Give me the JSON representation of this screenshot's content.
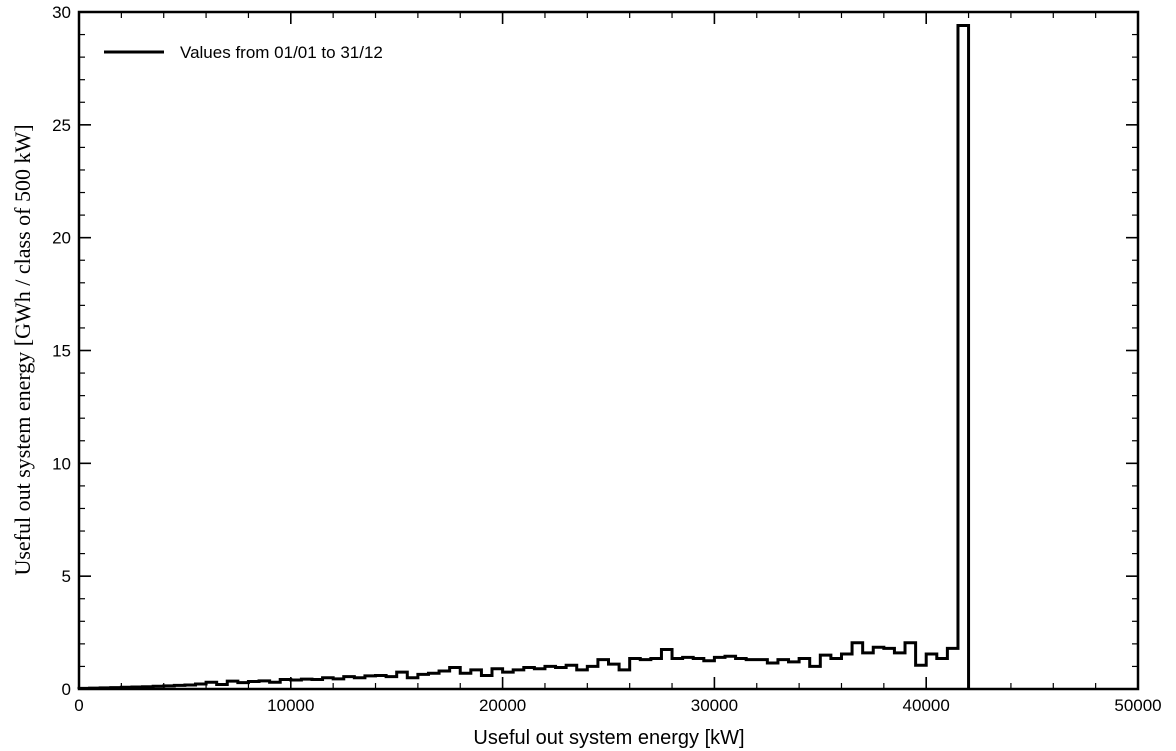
{
  "chart_data": {
    "type": "line",
    "style": "step-histogram",
    "title": "",
    "xlabel": "Useful out system energy [kW]",
    "ylabel": "Useful out system energy [GWh / class of 500 kW]",
    "xlim": [
      0,
      50000
    ],
    "ylim": [
      0,
      30
    ],
    "x_ticks": [
      "0",
      "10000",
      "20000",
      "30000",
      "40000",
      "50000"
    ],
    "y_ticks": [
      "0",
      "5",
      "10",
      "15",
      "20",
      "25",
      "30"
    ],
    "grid": false,
    "legend_position": "top-left",
    "bin_width": 500,
    "series": [
      {
        "name": "Values from 01/01 to 31/12",
        "color": "#000000",
        "bin_start": [
          0,
          500,
          1000,
          1500,
          2000,
          2500,
          3000,
          3500,
          4000,
          4500,
          5000,
          5500,
          6000,
          6500,
          7000,
          7500,
          8000,
          8500,
          9000,
          9500,
          10000,
          10500,
          11000,
          11500,
          12000,
          12500,
          13000,
          13500,
          14000,
          14500,
          15000,
          15500,
          16000,
          16500,
          17000,
          17500,
          18000,
          18500,
          19000,
          19500,
          20000,
          20500,
          21000,
          21500,
          22000,
          22500,
          23000,
          23500,
          24000,
          24500,
          25000,
          25500,
          26000,
          26500,
          27000,
          27500,
          28000,
          28500,
          29000,
          29500,
          30000,
          30500,
          31000,
          31500,
          32000,
          32500,
          33000,
          33500,
          34000,
          34500,
          35000,
          35500,
          36000,
          36500,
          37000,
          37500,
          38000,
          38500,
          39000,
          39500,
          40000,
          40500,
          41000,
          41500
        ],
        "values": [
          0.03,
          0.04,
          0.05,
          0.06,
          0.08,
          0.09,
          0.1,
          0.12,
          0.14,
          0.16,
          0.18,
          0.22,
          0.3,
          0.2,
          0.35,
          0.28,
          0.33,
          0.36,
          0.3,
          0.42,
          0.4,
          0.44,
          0.42,
          0.5,
          0.45,
          0.55,
          0.5,
          0.58,
          0.6,
          0.55,
          0.75,
          0.5,
          0.65,
          0.7,
          0.8,
          0.95,
          0.7,
          0.85,
          0.6,
          0.9,
          0.75,
          0.85,
          0.95,
          0.9,
          1.0,
          0.95,
          1.05,
          0.85,
          1.0,
          1.3,
          1.1,
          0.85,
          1.35,
          1.3,
          1.35,
          1.75,
          1.35,
          1.4,
          1.35,
          1.25,
          1.4,
          1.45,
          1.35,
          1.3,
          1.3,
          1.15,
          1.3,
          1.2,
          1.35,
          1.0,
          1.5,
          1.35,
          1.55,
          2.05,
          1.6,
          1.85,
          1.8,
          1.6,
          2.05,
          1.05,
          1.55,
          1.35,
          1.8,
          29.4
        ]
      }
    ]
  }
}
